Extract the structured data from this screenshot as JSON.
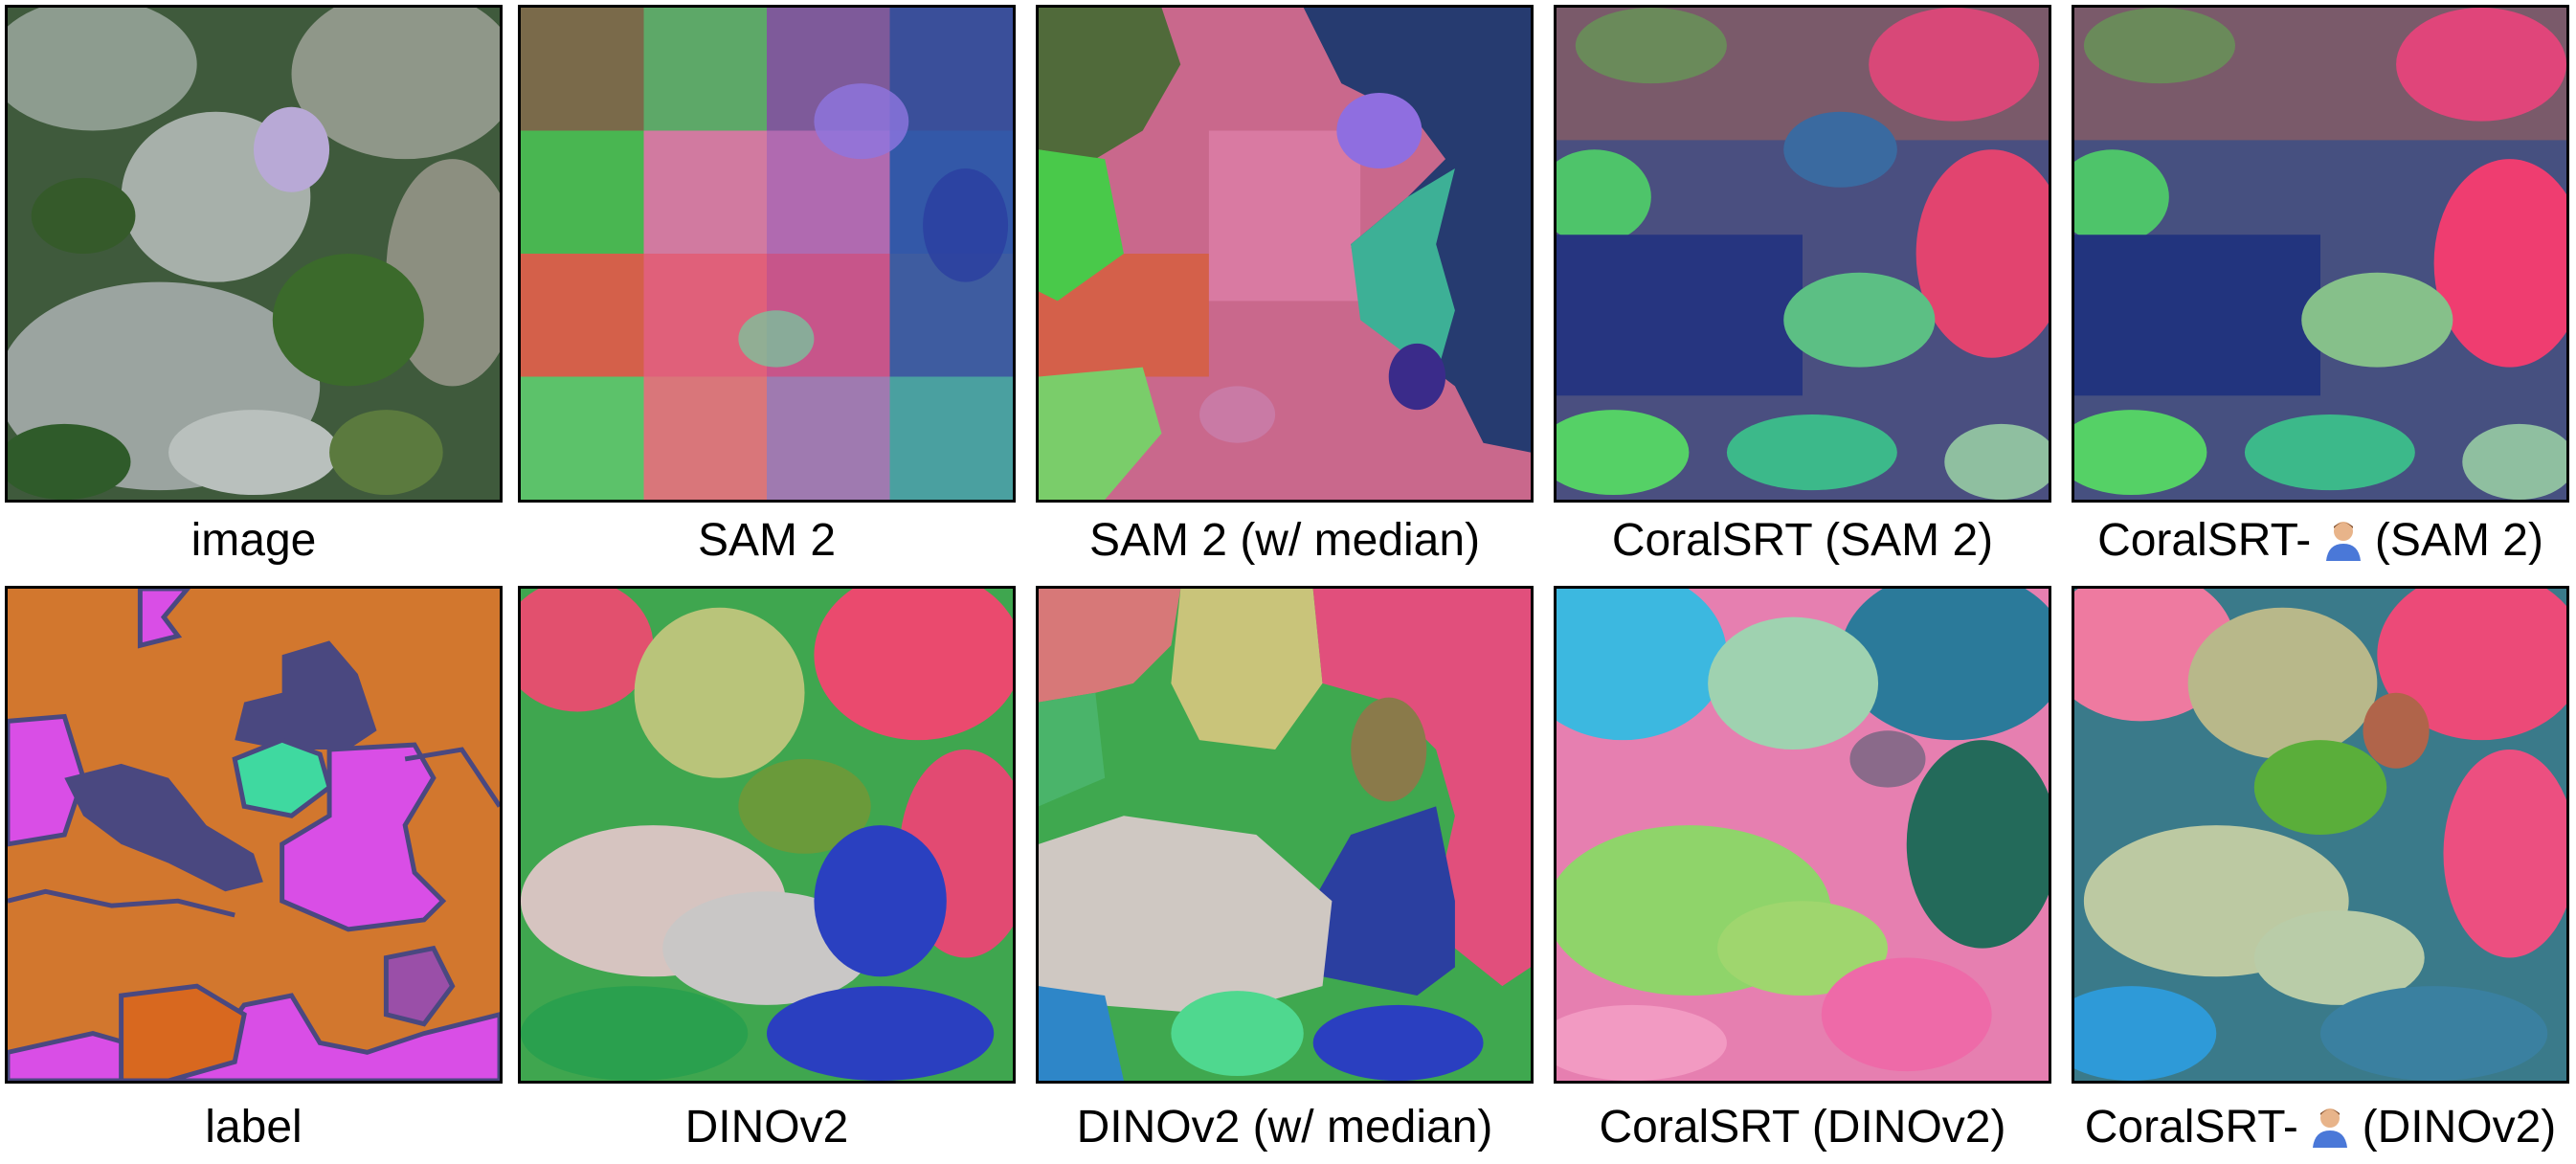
{
  "rows": [
    {
      "panels": [
        {
          "key": "image",
          "caption_parts": [
            "image"
          ]
        },
        {
          "key": "sam2",
          "caption_parts": [
            "SAM 2"
          ]
        },
        {
          "key": "sam2_median",
          "caption_parts": [
            "SAM 2 (w/ median)"
          ]
        },
        {
          "key": "coralsrt_sam2",
          "caption_parts": [
            "CoralSRT (SAM 2)"
          ]
        },
        {
          "key": "coralsrt_user_sam2",
          "caption_parts": [
            "CoralSRT-",
            "(SAM 2)"
          ],
          "icon": "user-icon"
        }
      ]
    },
    {
      "panels": [
        {
          "key": "label",
          "caption_parts": [
            "label"
          ]
        },
        {
          "key": "dinov2",
          "caption_parts": [
            "DINOv2"
          ]
        },
        {
          "key": "dinov2_median",
          "caption_parts": [
            "DINOv2 (w/ median)"
          ]
        },
        {
          "key": "coralsrt_dinov2",
          "caption_parts": [
            "CoralSRT (DINOv2)"
          ]
        },
        {
          "key": "coralsrt_user_dinov2",
          "caption_parts": [
            "CoralSRT-",
            "(DINOv2)"
          ],
          "icon": "user-icon"
        }
      ]
    }
  ],
  "colors": {
    "label_orange": "#d2772e",
    "label_magenta": "#d94ee6",
    "label_navy": "#4a4880",
    "label_teal": "#3fd9a0",
    "border": "#000000"
  }
}
